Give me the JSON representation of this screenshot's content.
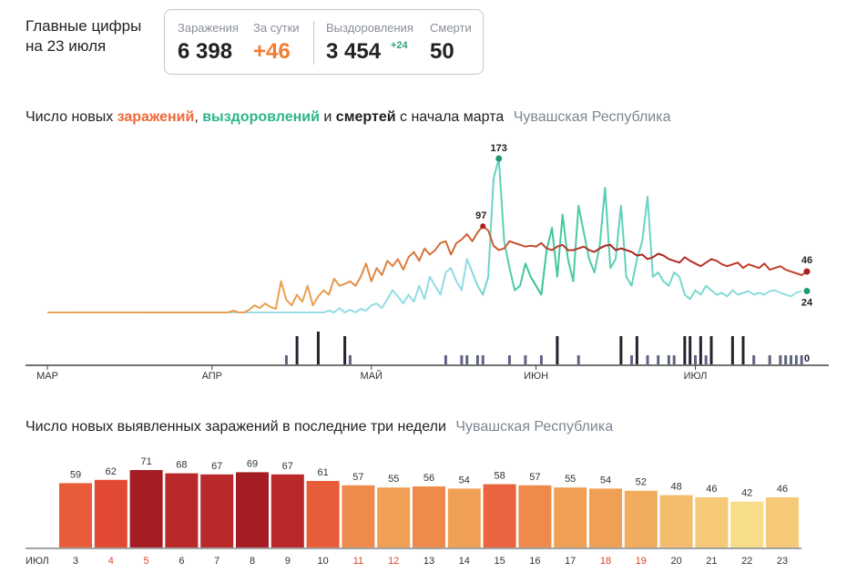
{
  "header": {
    "title_line1": "Главные цифры",
    "title_line2": "на 23 июля"
  },
  "stats": {
    "infections": {
      "label": "Заражения",
      "value": "6 398"
    },
    "daily": {
      "label": "За сутки",
      "value": "+46"
    },
    "recoveries": {
      "label": "Выздоровления",
      "value": "3 454",
      "delta": "+24"
    },
    "deaths": {
      "label": "Смерти",
      "value": "50"
    }
  },
  "chart1_title": {
    "p1": "Число новых ",
    "infections": "заражений",
    "p2": ", ",
    "recoveries": "выздоровлений",
    "p3": " и ",
    "deaths": "смертей",
    "p4": " с начала марта",
    "region": "Чувашская Республика"
  },
  "chart2_title": {
    "text": "Число новых выявленных заражений в последние три недели",
    "region": "Чувашская Республика"
  },
  "colors": {
    "infections": "#c0392b",
    "recoveries": "#8fd9e0",
    "recoveries_peak": "#3ec79d",
    "deaths": "#2a2a2a",
    "axis": "#444444"
  },
  "chart_data": [
    {
      "type": "line",
      "title": "Число новых заражений, выздоровлений и смертей с начала марта",
      "x_axis_labels": [
        "МАР",
        "АПР",
        "МАЙ",
        "ИЮН",
        "ИЮЛ"
      ],
      "x_range_days": [
        0,
        143
      ],
      "annotations": [
        {
          "text": "173",
          "series": "recoveries",
          "day": 85,
          "value": 173
        },
        {
          "text": "97",
          "series": "infections",
          "day": 82,
          "value": 97
        },
        {
          "text": "46",
          "series": "infections",
          "day": 143,
          "value": 46
        },
        {
          "text": "24",
          "series": "recoveries",
          "day": 143,
          "value": 24
        },
        {
          "text": "0",
          "series": "deaths",
          "day": 143,
          "value": 0
        }
      ],
      "series": [
        {
          "key": "infections",
          "values": [
            0,
            0,
            0,
            0,
            0,
            0,
            0,
            0,
            0,
            0,
            0,
            0,
            0,
            0,
            0,
            0,
            0,
            0,
            0,
            0,
            0,
            0,
            0,
            0,
            0,
            0,
            0,
            0,
            0,
            0,
            0,
            0,
            0,
            0,
            0,
            2,
            0,
            0,
            3,
            8,
            5,
            10,
            6,
            4,
            35,
            14,
            8,
            20,
            12,
            30,
            8,
            18,
            25,
            20,
            38,
            30,
            32,
            35,
            30,
            40,
            55,
            35,
            50,
            42,
            58,
            52,
            60,
            48,
            62,
            68,
            58,
            72,
            65,
            70,
            78,
            80,
            65,
            78,
            82,
            88,
            80,
            90,
            97,
            92,
            75,
            70,
            72,
            80,
            78,
            76,
            74,
            75,
            74,
            78,
            72,
            70,
            74,
            76,
            70,
            70,
            72,
            74,
            70,
            68,
            72,
            75,
            76,
            70,
            72,
            70,
            68,
            64,
            65,
            60,
            62,
            66,
            64,
            60,
            58,
            56,
            62,
            58,
            55,
            52,
            56,
            60,
            58,
            54,
            52,
            54,
            56,
            50,
            54,
            52,
            50,
            55,
            48,
            50,
            52,
            48,
            46,
            44,
            42,
            46
          ]
        },
        {
          "key": "recoveries",
          "values": [
            0,
            0,
            0,
            0,
            0,
            0,
            0,
            0,
            0,
            0,
            0,
            0,
            0,
            0,
            0,
            0,
            0,
            0,
            0,
            0,
            0,
            0,
            0,
            0,
            0,
            0,
            0,
            0,
            0,
            0,
            0,
            0,
            0,
            0,
            0,
            0,
            0,
            0,
            0,
            0,
            0,
            0,
            0,
            0,
            0,
            0,
            0,
            0,
            0,
            0,
            0,
            0,
            0,
            2,
            0,
            5,
            0,
            3,
            0,
            4,
            2,
            8,
            10,
            5,
            15,
            25,
            18,
            10,
            20,
            12,
            30,
            15,
            40,
            30,
            20,
            45,
            50,
            35,
            25,
            60,
            45,
            30,
            20,
            40,
            150,
            173,
            80,
            50,
            25,
            30,
            55,
            40,
            30,
            20,
            70,
            95,
            40,
            110,
            60,
            35,
            120,
            90,
            60,
            45,
            75,
            140,
            50,
            60,
            120,
            40,
            30,
            60,
            80,
            130,
            40,
            45,
            35,
            30,
            45,
            40,
            20,
            15,
            25,
            20,
            30,
            25,
            20,
            22,
            18,
            25,
            20,
            22,
            24,
            20,
            22,
            20,
            24,
            25,
            22,
            20,
            18,
            22,
            24
          ]
        },
        {
          "key": "deaths",
          "values": [
            0,
            0,
            0,
            0,
            0,
            0,
            0,
            0,
            0,
            0,
            0,
            0,
            0,
            0,
            0,
            0,
            0,
            0,
            0,
            0,
            0,
            0,
            0,
            0,
            0,
            0,
            0,
            0,
            0,
            0,
            0,
            0,
            0,
            0,
            0,
            0,
            0,
            0,
            0,
            0,
            0,
            0,
            0,
            0,
            0,
            1,
            0,
            2,
            0,
            0,
            0,
            3,
            0,
            0,
            0,
            0,
            2,
            1,
            0,
            0,
            0,
            0,
            0,
            0,
            0,
            0,
            0,
            0,
            0,
            0,
            0,
            0,
            0,
            0,
            0,
            1,
            0,
            0,
            1,
            1,
            0,
            1,
            1,
            0,
            0,
            0,
            0,
            1,
            0,
            0,
            1,
            0,
            0,
            1,
            0,
            0,
            2,
            0,
            0,
            0,
            1,
            0,
            0,
            0,
            0,
            0,
            0,
            0,
            2,
            0,
            1,
            2,
            0,
            1,
            0,
            1,
            0,
            1,
            1,
            0,
            2,
            2,
            1,
            2,
            1,
            2,
            0,
            0,
            0,
            2,
            0,
            2,
            0,
            1,
            0,
            0,
            1,
            0,
            1,
            1,
            1,
            1,
            1
          ]
        }
      ]
    },
    {
      "type": "bar",
      "title": "Число новых выявленных заражений в последние три недели",
      "month_label": "ИЮЛ",
      "categories": [
        "3",
        "4",
        "5",
        "6",
        "7",
        "8",
        "9",
        "10",
        "11",
        "12",
        "13",
        "14",
        "15",
        "16",
        "17",
        "18",
        "19",
        "20",
        "21",
        "22",
        "23"
      ],
      "weekend_days": [
        "4",
        "5",
        "11",
        "12",
        "18",
        "19"
      ],
      "values": [
        59,
        62,
        71,
        68,
        67,
        69,
        67,
        61,
        57,
        55,
        56,
        54,
        58,
        57,
        55,
        54,
        52,
        48,
        46,
        42,
        46
      ],
      "ylim": [
        0,
        71
      ]
    }
  ]
}
